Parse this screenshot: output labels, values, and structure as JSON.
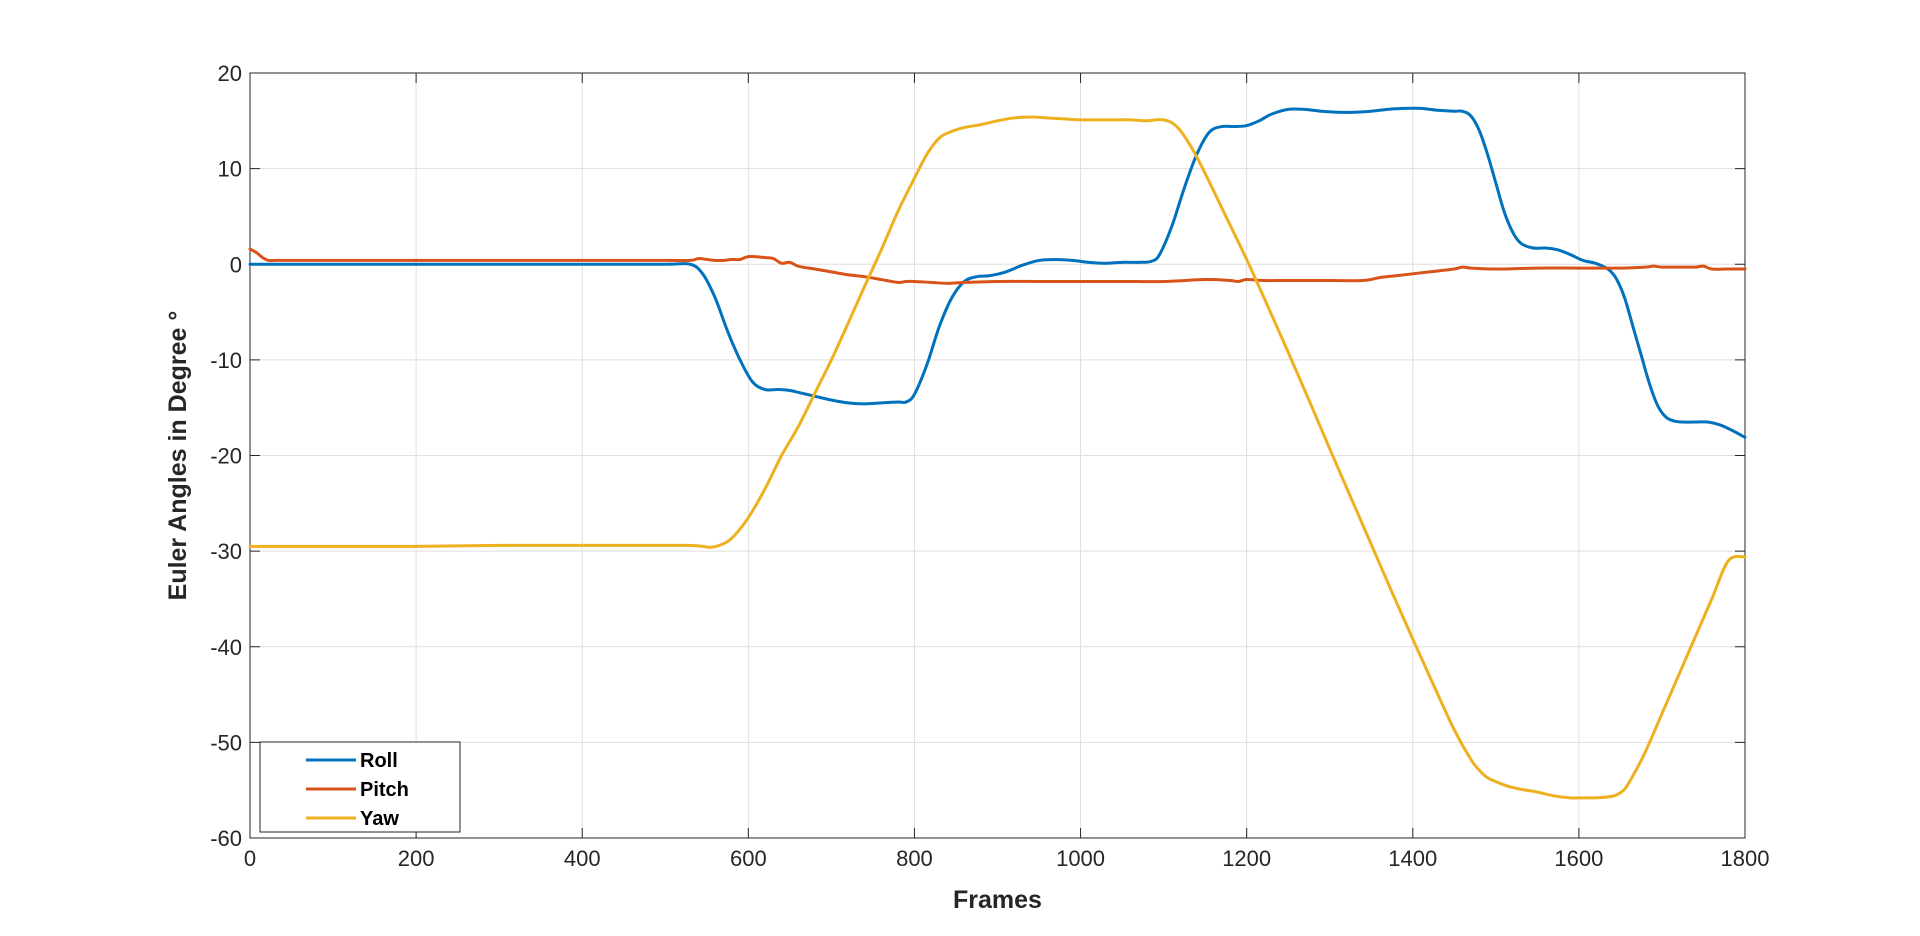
{
  "chart_data": {
    "type": "line",
    "xlabel": "Frames",
    "ylabel": "Euler Angles in Degree °",
    "xlim": [
      0,
      1800
    ],
    "ylim": [
      -60,
      20
    ],
    "xticks": [
      0,
      200,
      400,
      600,
      800,
      1000,
      1200,
      1400,
      1600,
      1800
    ],
    "yticks": [
      20,
      10,
      0,
      -10,
      -20,
      -30,
      -40,
      -50,
      -60
    ],
    "grid": true,
    "legend_position": "bottom-left",
    "series": [
      {
        "name": "Roll",
        "color": "#0072BD",
        "x": [
          0,
          50,
          100,
          200,
          300,
          400,
          500,
          530,
          545,
          560,
          575,
          590,
          605,
          620,
          635,
          650,
          665,
          680,
          700,
          720,
          740,
          760,
          780,
          790,
          800,
          815,
          830,
          845,
          860,
          875,
          890,
          910,
          930,
          950,
          970,
          990,
          1010,
          1030,
          1050,
          1070,
          1085,
          1095,
          1110,
          1125,
          1140,
          1155,
          1170,
          1185,
          1200,
          1215,
          1230,
          1250,
          1270,
          1290,
          1310,
          1330,
          1350,
          1370,
          1390,
          1410,
          1430,
          1450,
          1460,
          1470,
          1480,
          1490,
          1500,
          1510,
          1520,
          1530,
          1545,
          1560,
          1575,
          1590,
          1605,
          1620,
          1635,
          1645,
          1655,
          1665,
          1675,
          1685,
          1695,
          1705,
          1715,
          1725,
          1740,
          1755,
          1770,
          1785,
          1800
        ],
        "y": [
          0,
          0,
          0,
          0,
          0,
          0,
          0,
          0,
          -1,
          -3.5,
          -7,
          -10,
          -12.3,
          -13.1,
          -13.1,
          -13.2,
          -13.5,
          -13.8,
          -14.2,
          -14.5,
          -14.6,
          -14.5,
          -14.4,
          -14.4,
          -13.6,
          -10.5,
          -6.5,
          -3.5,
          -1.8,
          -1.3,
          -1.2,
          -0.8,
          -0.1,
          0.4,
          0.5,
          0.4,
          0.2,
          0.1,
          0.2,
          0.2,
          0.3,
          1.0,
          4.0,
          8.0,
          11.5,
          13.8,
          14.4,
          14.4,
          14.5,
          15.0,
          15.7,
          16.2,
          16.2,
          16.0,
          15.9,
          15.9,
          16.0,
          16.2,
          16.3,
          16.3,
          16.1,
          16.0,
          16.0,
          15.5,
          14.0,
          11.5,
          8.5,
          5.5,
          3.4,
          2.2,
          1.7,
          1.7,
          1.5,
          1.0,
          0.4,
          0.1,
          -0.5,
          -1.5,
          -3.5,
          -6.5,
          -9.5,
          -12.5,
          -14.8,
          -16.0,
          -16.4,
          -16.5,
          -16.5,
          -16.5,
          -16.8,
          -17.4,
          -18.1
        ]
      },
      {
        "name": "Pitch",
        "color": "#D95319",
        "x": [
          0,
          8,
          15,
          22,
          30,
          50,
          100,
          200,
          300,
          400,
          500,
          530,
          540,
          550,
          560,
          570,
          580,
          590,
          600,
          620,
          630,
          640,
          650,
          660,
          680,
          700,
          720,
          740,
          760,
          780,
          790,
          800,
          820,
          840,
          860,
          900,
          950,
          1000,
          1050,
          1100,
          1150,
          1180,
          1190,
          1200,
          1220,
          1250,
          1300,
          1340,
          1360,
          1380,
          1400,
          1420,
          1440,
          1450,
          1460,
          1470,
          1500,
          1550,
          1600,
          1650,
          1680,
          1690,
          1700,
          1720,
          1740,
          1750,
          1760,
          1780,
          1800
        ],
        "y": [
          1.6,
          1.2,
          0.7,
          0.4,
          0.4,
          0.4,
          0.4,
          0.4,
          0.4,
          0.4,
          0.4,
          0.4,
          0.6,
          0.5,
          0.4,
          0.4,
          0.5,
          0.5,
          0.8,
          0.7,
          0.6,
          0.1,
          0.2,
          -0.2,
          -0.5,
          -0.8,
          -1.1,
          -1.3,
          -1.6,
          -1.9,
          -1.8,
          -1.8,
          -1.9,
          -2.0,
          -1.9,
          -1.8,
          -1.8,
          -1.8,
          -1.8,
          -1.8,
          -1.6,
          -1.7,
          -1.8,
          -1.6,
          -1.7,
          -1.7,
          -1.7,
          -1.7,
          -1.4,
          -1.2,
          -1.0,
          -0.8,
          -0.6,
          -0.5,
          -0.3,
          -0.4,
          -0.5,
          -0.4,
          -0.4,
          -0.4,
          -0.3,
          -0.2,
          -0.3,
          -0.3,
          -0.3,
          -0.2,
          -0.5,
          -0.5,
          -0.5
        ]
      },
      {
        "name": "Yaw",
        "color": "#EDB120",
        "x": [
          0,
          100,
          200,
          300,
          400,
          500,
          530,
          545,
          555,
          565,
          575,
          585,
          600,
          620,
          640,
          660,
          680,
          700,
          720,
          740,
          760,
          780,
          800,
          815,
          830,
          845,
          860,
          880,
          900,
          920,
          940,
          960,
          980,
          1000,
          1020,
          1040,
          1060,
          1080,
          1090,
          1100,
          1110,
          1120,
          1135,
          1150,
          1175,
          1200,
          1225,
          1250,
          1275,
          1300,
          1325,
          1350,
          1375,
          1400,
          1425,
          1450,
          1470,
          1480,
          1490,
          1500,
          1515,
          1530,
          1550,
          1570,
          1590,
          1605,
          1620,
          1635,
          1645,
          1655,
          1665,
          1680,
          1700,
          1720,
          1740,
          1760,
          1780,
          1800
        ],
        "y": [
          -29.5,
          -29.5,
          -29.5,
          -29.4,
          -29.4,
          -29.4,
          -29.4,
          -29.5,
          -29.6,
          -29.4,
          -29.0,
          -28.2,
          -26.5,
          -23.5,
          -20.0,
          -17.0,
          -13.5,
          -10.0,
          -6.2,
          -2.3,
          1.5,
          5.5,
          9.0,
          11.5,
          13.2,
          13.9,
          14.3,
          14.6,
          15.0,
          15.3,
          15.4,
          15.3,
          15.2,
          15.1,
          15.1,
          15.1,
          15.1,
          15.0,
          15.1,
          15.1,
          14.8,
          14.0,
          12.0,
          9.5,
          5.0,
          0.5,
          -4.3,
          -9.2,
          -14.2,
          -19.3,
          -24.3,
          -29.3,
          -34.3,
          -39.2,
          -44.0,
          -48.7,
          -51.8,
          -52.9,
          -53.7,
          -54.1,
          -54.6,
          -54.9,
          -55.2,
          -55.6,
          -55.8,
          -55.8,
          -55.8,
          -55.7,
          -55.5,
          -54.9,
          -53.5,
          -51.0,
          -47.0,
          -43.0,
          -39.0,
          -35.0,
          -31.0,
          -30.6
        ]
      }
    ]
  }
}
